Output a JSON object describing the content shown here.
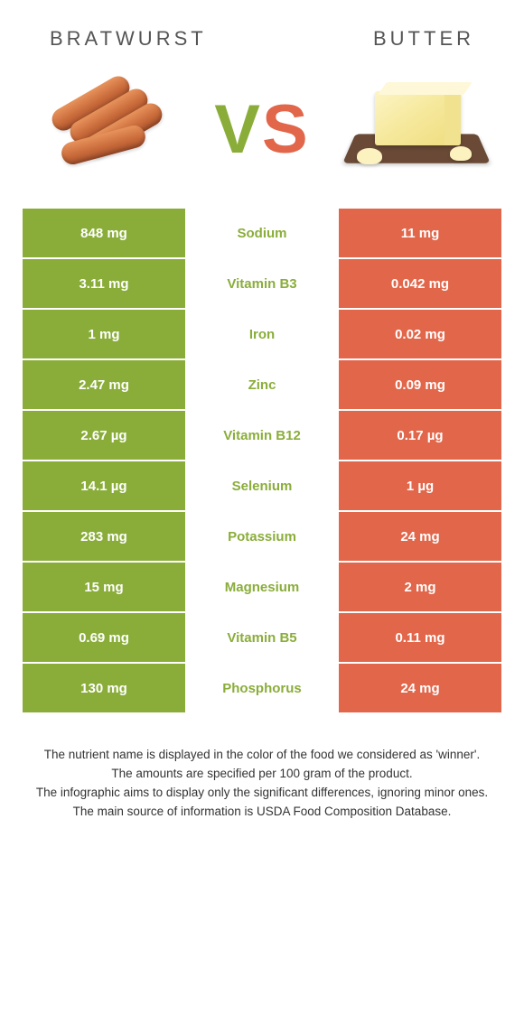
{
  "colors": {
    "left": "#8aad3a",
    "right": "#e1664a",
    "winner_text_left": "#8aad3a",
    "winner_text_right": "#e1664a"
  },
  "header": {
    "left_title": "BRATWURST",
    "right_title": "BUTTER",
    "vs_v": "V",
    "vs_s": "S"
  },
  "rows": [
    {
      "left": "848 mg",
      "name": "Sodium",
      "right": "11 mg",
      "winner": "left"
    },
    {
      "left": "3.11 mg",
      "name": "Vitamin B3",
      "right": "0.042 mg",
      "winner": "left"
    },
    {
      "left": "1 mg",
      "name": "Iron",
      "right": "0.02 mg",
      "winner": "left"
    },
    {
      "left": "2.47 mg",
      "name": "Zinc",
      "right": "0.09 mg",
      "winner": "left"
    },
    {
      "left": "2.67 µg",
      "name": "Vitamin B12",
      "right": "0.17 µg",
      "winner": "left"
    },
    {
      "left": "14.1 µg",
      "name": "Selenium",
      "right": "1 µg",
      "winner": "left"
    },
    {
      "left": "283 mg",
      "name": "Potassium",
      "right": "24 mg",
      "winner": "left"
    },
    {
      "left": "15 mg",
      "name": "Magnesium",
      "right": "2 mg",
      "winner": "left"
    },
    {
      "left": "0.69 mg",
      "name": "Vitamin B5",
      "right": "0.11 mg",
      "winner": "left"
    },
    {
      "left": "130 mg",
      "name": "Phosphorus",
      "right": "24 mg",
      "winner": "left"
    }
  ],
  "notes": {
    "l1": "The nutrient name is displayed in the color of the food we considered as 'winner'.",
    "l2": "The amounts are specified per 100 gram of the product.",
    "l3": "The infographic aims to display only the significant differences, ignoring minor ones.",
    "l4": "The main source of information is USDA Food Composition Database."
  }
}
